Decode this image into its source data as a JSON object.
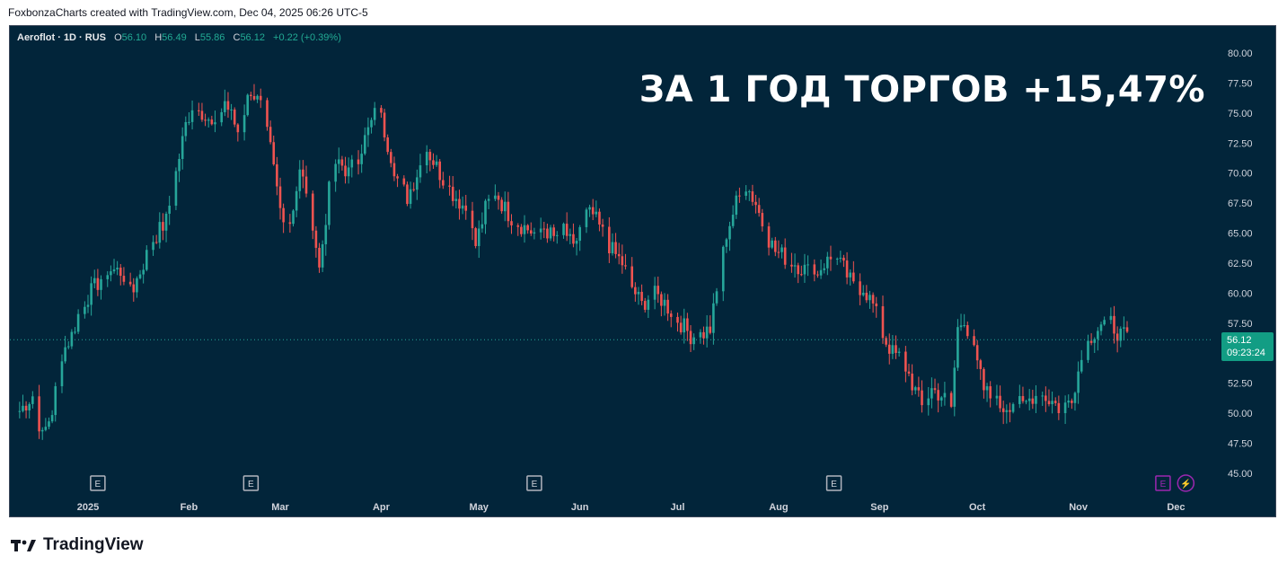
{
  "attribution": "FoxbonzaCharts created with TradingView.com, Dec 04, 2025 06:26 UTC-5",
  "legend": {
    "symbol": "Aeroflot · 1D · RUS",
    "o_label": "O",
    "o_value": "56.10",
    "h_label": "H",
    "h_value": "56.49",
    "l_label": "L",
    "l_value": "55.86",
    "c_label": "C",
    "c_value": "56.12",
    "change": "+0.22 (+0.39%)"
  },
  "headline": "ЗА 1 ГОД ТОРГОВ +15,47%",
  "price_label": {
    "price": "56.12",
    "countdown": "09:23:24"
  },
  "footer_logo": {
    "icon": "tradingview-logo-icon",
    "text": "TradingView"
  },
  "colors": {
    "background": "#02253a",
    "up": "#26a69a",
    "down": "#ef5350",
    "price_line": "#26a69a"
  },
  "chart_data": {
    "type": "candlestick",
    "y_axis": {
      "min": 45.0,
      "max": 80.0,
      "ticks": [
        "80.00",
        "77.50",
        "75.00",
        "72.50",
        "70.00",
        "67.50",
        "65.00",
        "62.50",
        "60.00",
        "57.50",
        "55.00",
        "52.50",
        "50.00",
        "47.50",
        "45.00"
      ]
    },
    "x_axis": {
      "labels": [
        {
          "label": "2025",
          "day": 0,
          "bold": true
        },
        {
          "label": "Feb",
          "day": 31
        },
        {
          "label": "Mar",
          "day": 59
        },
        {
          "label": "Apr",
          "day": 90
        },
        {
          "label": "May",
          "day": 120
        },
        {
          "label": "Jun",
          "day": 151
        },
        {
          "label": "Jul",
          "day": 181
        },
        {
          "label": "Aug",
          "day": 212
        },
        {
          "label": "Sep",
          "day": 243
        },
        {
          "label": "Oct",
          "day": 273
        },
        {
          "label": "Nov",
          "day": 304
        },
        {
          "label": "Dec",
          "day": 334
        }
      ]
    },
    "events": [
      {
        "type": "earnings",
        "label": "E",
        "day": 3
      },
      {
        "type": "earnings",
        "label": "E",
        "day": 50
      },
      {
        "type": "earnings",
        "label": "E",
        "day": 137
      },
      {
        "type": "earnings",
        "label": "E",
        "day": 229
      },
      {
        "type": "earnings",
        "label": "E",
        "day": 330,
        "color": "#9c27b0"
      },
      {
        "type": "split",
        "label": "⚡",
        "day": 337,
        "color": "#9c27b0"
      }
    ],
    "last_price": 56.12,
    "waypoints": [
      [
        -21,
        50.2
      ],
      [
        -17,
        51.5
      ],
      [
        -14,
        48.0
      ],
      [
        -11,
        50.2
      ],
      [
        -8,
        55.0
      ],
      [
        -5,
        56.5
      ],
      [
        -2,
        59.0
      ],
      [
        2,
        60.5
      ],
      [
        6,
        62.0
      ],
      [
        10,
        61.8
      ],
      [
        14,
        60.5
      ],
      [
        17,
        62.5
      ],
      [
        20,
        64.5
      ],
      [
        24,
        66.0
      ],
      [
        27,
        70.0
      ],
      [
        30,
        74.0
      ],
      [
        33,
        76.5
      ],
      [
        36,
        74.5
      ],
      [
        39,
        73.5
      ],
      [
        42,
        76.0
      ],
      [
        46,
        73.5
      ],
      [
        50,
        77.0
      ],
      [
        53,
        75.5
      ],
      [
        56,
        72.0
      ],
      [
        59,
        67.0
      ],
      [
        62,
        66.0
      ],
      [
        65,
        70.0
      ],
      [
        68,
        68.0
      ],
      [
        71,
        62.0
      ],
      [
        74,
        68.5
      ],
      [
        77,
        71.0
      ],
      [
        80,
        70.0
      ],
      [
        83,
        71.5
      ],
      [
        86,
        73.5
      ],
      [
        89,
        75.5
      ],
      [
        92,
        72.5
      ],
      [
        95,
        69.5
      ],
      [
        98,
        68.0
      ],
      [
        101,
        70.0
      ],
      [
        104,
        72.0
      ],
      [
        107,
        70.5
      ],
      [
        110,
        69.0
      ],
      [
        113,
        68.0
      ],
      [
        116,
        67.0
      ],
      [
        119,
        64.0
      ],
      [
        122,
        67.0
      ],
      [
        125,
        68.5
      ],
      [
        128,
        67.0
      ],
      [
        131,
        66.0
      ],
      [
        134,
        65.5
      ],
      [
        137,
        65.0
      ],
      [
        140,
        65.5
      ],
      [
        143,
        64.5
      ],
      [
        146,
        65.5
      ],
      [
        149,
        63.5
      ],
      [
        152,
        66.5
      ],
      [
        155,
        66.5
      ],
      [
        158,
        65.0
      ],
      [
        161,
        63.5
      ],
      [
        164,
        62.5
      ],
      [
        167,
        60.5
      ],
      [
        170,
        59.0
      ],
      [
        173,
        60.0
      ],
      [
        176,
        59.5
      ],
      [
        179,
        58.5
      ],
      [
        182,
        57.5
      ],
      [
        185,
        56.5
      ],
      [
        188,
        56.5
      ],
      [
        191,
        57.0
      ],
      [
        193,
        60.0
      ],
      [
        196,
        65.0
      ],
      [
        199,
        67.5
      ],
      [
        202,
        69.0
      ],
      [
        205,
        67.5
      ],
      [
        208,
        65.0
      ],
      [
        211,
        63.5
      ],
      [
        214,
        63.0
      ],
      [
        217,
        62.5
      ],
      [
        220,
        62.0
      ],
      [
        223,
        61.5
      ],
      [
        226,
        62.5
      ],
      [
        229,
        63.0
      ],
      [
        232,
        62.0
      ],
      [
        235,
        60.5
      ],
      [
        238,
        60.5
      ],
      [
        241,
        59.0
      ],
      [
        244,
        56.5
      ],
      [
        247,
        55.0
      ],
      [
        250,
        54.5
      ],
      [
        253,
        52.5
      ],
      [
        256,
        50.5
      ],
      [
        259,
        52.0
      ],
      [
        262,
        51.5
      ],
      [
        265,
        50.5
      ],
      [
        267,
        57.0
      ],
      [
        269,
        58.0
      ],
      [
        272,
        55.0
      ],
      [
        275,
        52.0
      ],
      [
        278,
        51.0
      ],
      [
        281,
        50.5
      ],
      [
        284,
        51.0
      ],
      [
        287,
        50.5
      ],
      [
        290,
        51.5
      ],
      [
        293,
        51.5
      ],
      [
        296,
        51.0
      ],
      [
        299,
        50.2
      ],
      [
        302,
        51.5
      ],
      [
        305,
        54.5
      ],
      [
        308,
        56.5
      ],
      [
        311,
        57.5
      ],
      [
        314,
        57.5
      ],
      [
        317,
        56.5
      ],
      [
        320,
        56.1
      ]
    ]
  }
}
